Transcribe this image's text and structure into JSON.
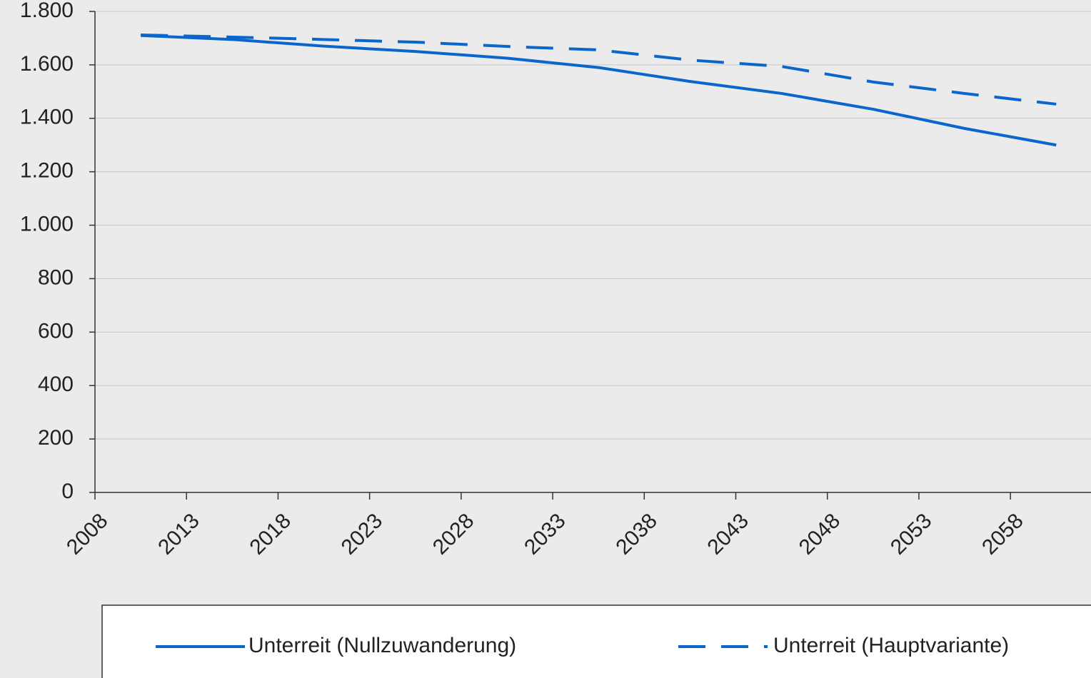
{
  "chart_data": {
    "type": "line",
    "x": [
      2010.5,
      2015.5,
      2020.5,
      2025.5,
      2030.5,
      2035.5,
      2040.5,
      2045.5,
      2050.5,
      2055.5,
      2060.5
    ],
    "series": [
      {
        "name": "Unterreit (Nullzuwanderung)",
        "color": "#0a66cc",
        "dashed": false,
        "values": [
          1710,
          1695,
          1670,
          1650,
          1625,
          1590,
          1538,
          1493,
          1434,
          1362,
          1300
        ]
      },
      {
        "name": "Unterreit (Hauptvariante)",
        "color": "#0a66cc",
        "dashed": true,
        "values": [
          1712,
          1704,
          1695,
          1685,
          1669,
          1656,
          1618,
          1594,
          1536,
          1493,
          1453
        ]
      }
    ],
    "xlim": [
      2008,
      2062.4
    ],
    "xticks": [
      2008,
      2013,
      2018,
      2023,
      2028,
      2033,
      2038,
      2043,
      2048,
      2053,
      2058
    ],
    "ylim": [
      0,
      1800
    ],
    "yticks": [
      0,
      200,
      400,
      600,
      800,
      {
        "value": 1000,
        "label": "1.000"
      },
      {
        "value": 1200,
        "label": "1.200"
      },
      {
        "value": 1400,
        "label": "1.400"
      },
      {
        "value": 1600,
        "label": "1.600"
      },
      {
        "value": 1800,
        "label": "1.800"
      }
    ],
    "grid": true,
    "legend": "bottom"
  }
}
